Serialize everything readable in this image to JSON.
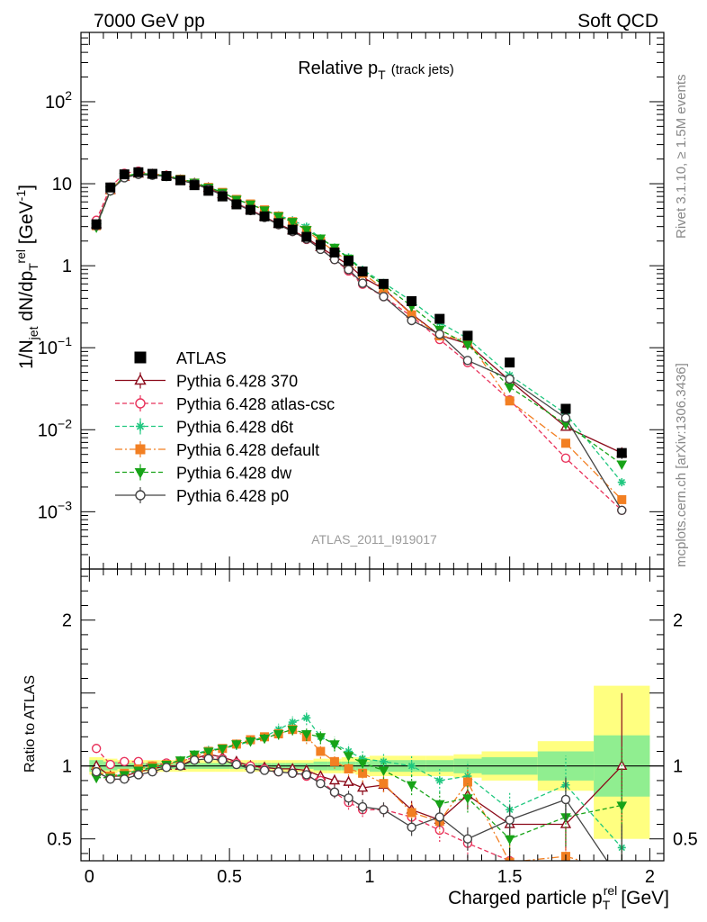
{
  "header": {
    "energy_label": "7000 GeV pp",
    "process_label": "Soft QCD",
    "side_version": "Rivet 3.1.10, ≥ 1.5M events",
    "side_source": "mcplots.cern.ch [arXiv:1306.3436]",
    "analysis_id": "ATLAS_2011_I919017"
  },
  "chart_data": {
    "type": "scatter",
    "title": "Relative p",
    "title_sub": "T",
    "title_suffix": "(track jets)",
    "xlabel": "Charged particle p",
    "xlabel_sub": "T",
    "xlabel_sup": "rel",
    "xlabel_units": "[GeV]",
    "ylabel_main": "1/N",
    "ylabel_main_sub": "jet",
    "ylabel_main_mid": " dN/dp",
    "ylabel_main_sub2": "T",
    "ylabel_main_sup2": "rel",
    "ylabel_main_units": " [GeV",
    "ylabel_main_units_sup": "-1",
    "ylabel_main_units_end": "]",
    "ylabel_ratio": "Ratio to ATLAS",
    "xlim": [
      -0.03,
      2.05
    ],
    "ylim_main": [
      0.0002,
      700
    ],
    "yscale_main": "log",
    "ylim_ratio": [
      0.35,
      2.35
    ],
    "x_ticks": [
      "0",
      "0.5",
      "1",
      "1.5",
      "2"
    ],
    "y_ticks_main": [
      {
        "mant": "10",
        "exp": "−3"
      },
      {
        "mant": "10",
        "exp": "−2"
      },
      {
        "mant": "10",
        "exp": "−1"
      },
      {
        "mant": "1",
        "exp": ""
      },
      {
        "mant": "10",
        "exp": ""
      },
      {
        "mant": "10",
        "exp": "2"
      }
    ],
    "y_ticks_ratio": [
      "0.5",
      "1",
      "2"
    ],
    "legend_position": "middle-left",
    "x": [
      0.025,
      0.075,
      0.125,
      0.175,
      0.225,
      0.275,
      0.325,
      0.375,
      0.425,
      0.475,
      0.525,
      0.575,
      0.625,
      0.675,
      0.725,
      0.775,
      0.825,
      0.875,
      0.925,
      0.975,
      1.05,
      1.15,
      1.25,
      1.35,
      1.5,
      1.7,
      1.9
    ],
    "band_bins": [
      {
        "x0": 0.0,
        "x1": 0.05,
        "in": [
          0.96,
          1.04
        ],
        "out": [
          0.94,
          1.06
        ]
      },
      {
        "x0": 0.05,
        "x1": 0.1,
        "in": [
          0.97,
          1.03
        ],
        "out": [
          0.95,
          1.05
        ]
      },
      {
        "x0": 0.1,
        "x1": 0.15,
        "in": [
          0.98,
          1.02
        ],
        "out": [
          0.96,
          1.04
        ]
      },
      {
        "x0": 0.15,
        "x1": 0.2,
        "in": [
          0.98,
          1.02
        ],
        "out": [
          0.96,
          1.04
        ]
      },
      {
        "x0": 0.2,
        "x1": 0.25,
        "in": [
          0.98,
          1.02
        ],
        "out": [
          0.96,
          1.04
        ]
      },
      {
        "x0": 0.25,
        "x1": 0.3,
        "in": [
          0.98,
          1.02
        ],
        "out": [
          0.96,
          1.04
        ]
      },
      {
        "x0": 0.3,
        "x1": 0.35,
        "in": [
          0.98,
          1.02
        ],
        "out": [
          0.96,
          1.04
        ]
      },
      {
        "x0": 0.35,
        "x1": 0.4,
        "in": [
          0.98,
          1.02
        ],
        "out": [
          0.96,
          1.04
        ]
      },
      {
        "x0": 0.4,
        "x1": 0.45,
        "in": [
          0.98,
          1.02
        ],
        "out": [
          0.96,
          1.04
        ]
      },
      {
        "x0": 0.45,
        "x1": 0.5,
        "in": [
          0.98,
          1.02
        ],
        "out": [
          0.96,
          1.04
        ]
      },
      {
        "x0": 0.5,
        "x1": 0.55,
        "in": [
          0.98,
          1.02
        ],
        "out": [
          0.96,
          1.04
        ]
      },
      {
        "x0": 0.55,
        "x1": 0.6,
        "in": [
          0.98,
          1.02
        ],
        "out": [
          0.96,
          1.04
        ]
      },
      {
        "x0": 0.6,
        "x1": 0.65,
        "in": [
          0.98,
          1.02
        ],
        "out": [
          0.96,
          1.04
        ]
      },
      {
        "x0": 0.65,
        "x1": 0.7,
        "in": [
          0.98,
          1.02
        ],
        "out": [
          0.96,
          1.04
        ]
      },
      {
        "x0": 0.7,
        "x1": 0.75,
        "in": [
          0.98,
          1.02
        ],
        "out": [
          0.96,
          1.04
        ]
      },
      {
        "x0": 0.75,
        "x1": 0.8,
        "in": [
          0.98,
          1.02
        ],
        "out": [
          0.96,
          1.04
        ]
      },
      {
        "x0": 0.8,
        "x1": 0.85,
        "in": [
          0.97,
          1.03
        ],
        "out": [
          0.95,
          1.05
        ]
      },
      {
        "x0": 0.85,
        "x1": 0.9,
        "in": [
          0.97,
          1.03
        ],
        "out": [
          0.95,
          1.05
        ]
      },
      {
        "x0": 0.9,
        "x1": 0.95,
        "in": [
          0.97,
          1.03
        ],
        "out": [
          0.95,
          1.06
        ]
      },
      {
        "x0": 0.95,
        "x1": 1.0,
        "in": [
          0.97,
          1.03
        ],
        "out": [
          0.94,
          1.06
        ]
      },
      {
        "x0": 1.0,
        "x1": 1.1,
        "in": [
          0.96,
          1.04
        ],
        "out": [
          0.93,
          1.07
        ]
      },
      {
        "x0": 1.1,
        "x1": 1.2,
        "in": [
          0.96,
          1.04
        ],
        "out": [
          0.93,
          1.07
        ]
      },
      {
        "x0": 1.2,
        "x1": 1.3,
        "in": [
          0.96,
          1.04
        ],
        "out": [
          0.93,
          1.07
        ]
      },
      {
        "x0": 1.3,
        "x1": 1.4,
        "in": [
          0.95,
          1.05
        ],
        "out": [
          0.92,
          1.08
        ]
      },
      {
        "x0": 1.4,
        "x1": 1.6,
        "in": [
          0.94,
          1.06
        ],
        "out": [
          0.9,
          1.1
        ]
      },
      {
        "x0": 1.6,
        "x1": 1.8,
        "in": [
          0.9,
          1.1
        ],
        "out": [
          0.83,
          1.17
        ]
      },
      {
        "x0": 1.8,
        "x1": 2.0,
        "in": [
          0.79,
          1.21
        ],
        "out": [
          0.5,
          1.55
        ]
      }
    ],
    "series": [
      {
        "name": "ATLAS",
        "kind": "data",
        "color": "#000000",
        "marker": "square",
        "values": [
          3.2,
          9.0,
          13.0,
          13.8,
          13.2,
          12.4,
          11.0,
          9.6,
          8.2,
          7.0,
          5.6,
          4.8,
          4.0,
          3.3,
          2.75,
          2.25,
          1.8,
          1.45,
          1.15,
          0.85,
          0.6,
          0.37,
          0.225,
          0.14,
          0.066,
          0.018,
          0.0052
        ],
        "errors": [
          0.1,
          0.2,
          0.3,
          0.3,
          0.3,
          0.3,
          0.2,
          0.2,
          0.2,
          0.15,
          0.12,
          0.1,
          0.08,
          0.07,
          0.06,
          0.05,
          0.04,
          0.03,
          0.03,
          0.02,
          0.015,
          0.01,
          0.007,
          0.005,
          0.003,
          0.0015,
          0.0008
        ]
      },
      {
        "name": "Pythia 6.428 370",
        "kind": "mc",
        "color": "#8b0a1a",
        "dash": "",
        "marker": "triangle-open",
        "ratio": [
          1.0,
          0.93,
          0.93,
          0.96,
          0.98,
          1.0,
          1.0,
          1.05,
          1.08,
          1.06,
          1.03,
          1.0,
          0.99,
          0.98,
          0.98,
          0.97,
          0.93,
          0.9,
          0.89,
          0.85,
          0.87,
          0.7,
          0.63,
          0.8,
          0.6,
          0.6,
          1.0
        ],
        "ratio_err": [
          0.02,
          0.02,
          0.02,
          0.02,
          0.02,
          0.02,
          0.02,
          0.02,
          0.02,
          0.02,
          0.02,
          0.02,
          0.02,
          0.02,
          0.03,
          0.03,
          0.03,
          0.04,
          0.04,
          0.05,
          0.05,
          0.06,
          0.08,
          0.1,
          0.12,
          0.18,
          0.5
        ]
      },
      {
        "name": "Pythia 6.428 atlas-csc",
        "kind": "mc",
        "color": "#e8315a",
        "dash": "5,3",
        "marker": "circle-open",
        "ratio": [
          1.12,
          1.01,
          1.03,
          1.03,
          1.0,
          1.02,
          1.03,
          1.06,
          1.06,
          1.05,
          1.02,
          1.0,
          0.98,
          0.96,
          0.95,
          0.93,
          0.9,
          0.82,
          0.75,
          0.7,
          0.7,
          0.65,
          0.56,
          0.47,
          0.35,
          0.25,
          0.2
        ],
        "ratio_err": [
          0.03,
          0.02,
          0.02,
          0.02,
          0.02,
          0.02,
          0.02,
          0.02,
          0.02,
          0.02,
          0.02,
          0.02,
          0.02,
          0.03,
          0.03,
          0.03,
          0.04,
          0.04,
          0.05,
          0.05,
          0.05,
          0.06,
          0.08,
          0.1,
          0.12,
          0.2,
          0.4
        ]
      },
      {
        "name": "Pythia 6.428 d6t",
        "kind": "mc",
        "color": "#1fc77f",
        "dash": "5,3",
        "marker": "asterisk",
        "ratio": [
          0.95,
          0.92,
          0.95,
          0.97,
          0.98,
          1.01,
          1.04,
          1.08,
          1.11,
          1.12,
          1.14,
          1.17,
          1.2,
          1.25,
          1.3,
          1.33,
          1.2,
          1.15,
          1.1,
          1.05,
          1.03,
          1.0,
          0.9,
          0.93,
          0.7,
          0.87,
          0.44
        ],
        "ratio_err": [
          0.02,
          0.02,
          0.02,
          0.02,
          0.02,
          0.02,
          0.02,
          0.02,
          0.02,
          0.02,
          0.03,
          0.03,
          0.03,
          0.04,
          0.04,
          0.05,
          0.05,
          0.05,
          0.05,
          0.06,
          0.06,
          0.07,
          0.08,
          0.1,
          0.12,
          0.2,
          0.4
        ]
      },
      {
        "name": "Pythia 6.428 default",
        "kind": "mc",
        "color": "#f27f22",
        "dash": "8,3,2,3",
        "marker": "square",
        "ratio": [
          0.96,
          0.93,
          0.95,
          0.98,
          1.0,
          1.01,
          1.03,
          1.06,
          1.1,
          1.12,
          1.15,
          1.18,
          1.2,
          1.22,
          1.25,
          1.2,
          1.1,
          1.03,
          0.98,
          0.95,
          0.88,
          0.68,
          0.62,
          0.89,
          0.34,
          0.38,
          0.27
        ],
        "ratio_err": [
          0.02,
          0.02,
          0.02,
          0.02,
          0.02,
          0.02,
          0.02,
          0.02,
          0.02,
          0.02,
          0.03,
          0.03,
          0.03,
          0.04,
          0.04,
          0.05,
          0.05,
          0.05,
          0.05,
          0.06,
          0.06,
          0.07,
          0.08,
          0.1,
          0.12,
          0.2,
          0.4
        ]
      },
      {
        "name": "Pythia 6.428 dw",
        "kind": "mc",
        "color": "#17a317",
        "dash": "5,3",
        "marker": "triangle-down",
        "ratio": [
          0.92,
          0.92,
          0.94,
          0.97,
          0.99,
          1.01,
          1.04,
          1.08,
          1.1,
          1.12,
          1.15,
          1.17,
          1.19,
          1.22,
          1.25,
          1.22,
          1.2,
          1.15,
          1.07,
          1.02,
          0.97,
          0.87,
          0.74,
          0.78,
          0.5,
          0.65,
          0.73
        ],
        "ratio_err": [
          0.02,
          0.02,
          0.02,
          0.02,
          0.02,
          0.02,
          0.02,
          0.02,
          0.02,
          0.02,
          0.03,
          0.03,
          0.03,
          0.04,
          0.04,
          0.05,
          0.05,
          0.05,
          0.05,
          0.06,
          0.06,
          0.07,
          0.08,
          0.1,
          0.12,
          0.2,
          0.4
        ]
      },
      {
        "name": "Pythia 6.428 p0",
        "kind": "mc",
        "color": "#444444",
        "dash": "",
        "marker": "circle-open",
        "ratio": [
          0.96,
          0.91,
          0.91,
          0.94,
          0.96,
          0.99,
          1.0,
          1.04,
          1.05,
          1.04,
          1.01,
          0.98,
          0.97,
          0.96,
          0.95,
          0.94,
          0.88,
          0.82,
          0.78,
          0.72,
          0.7,
          0.58,
          0.65,
          0.5,
          0.63,
          0.77,
          0.2
        ],
        "ratio_err": [
          0.02,
          0.02,
          0.02,
          0.02,
          0.02,
          0.02,
          0.02,
          0.02,
          0.02,
          0.02,
          0.02,
          0.02,
          0.02,
          0.02,
          0.03,
          0.03,
          0.03,
          0.04,
          0.05,
          0.05,
          0.05,
          0.06,
          0.07,
          0.08,
          0.1,
          0.15,
          0.4
        ]
      }
    ]
  }
}
